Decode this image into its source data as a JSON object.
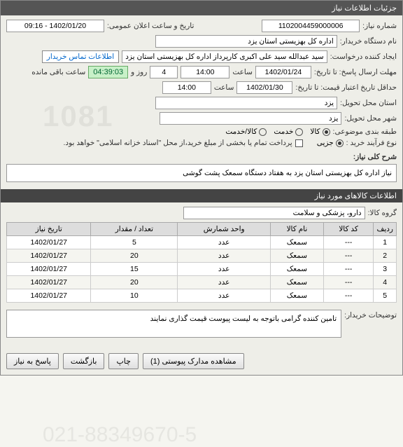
{
  "panel": {
    "title": "جزئیات اطلاعات نیاز"
  },
  "info": {
    "needNo_label": "شماره نیاز:",
    "needNo": "1102004459000006",
    "announceDate_label": "تاریخ و ساعت اعلان عمومی:",
    "announceDate": "1402/01/20 - 09:16",
    "buyerOrg_label": "نام دستگاه خریدار:",
    "buyerOrg": "اداره کل بهزیستی استان یزد",
    "requester_label": "ایجاد کننده درخواست:",
    "requester": "سید عبدالله سید علی اکبری کارپرداز اداره کل بهزیستی استان یزد",
    "contactInfo_btn": "اطلاعات تماس خریدار",
    "deadline_label": "مهلت ارسال پاسخ: تا تاریخ:",
    "deadline_date": "1402/01/24",
    "time_label": "ساعت",
    "deadline_time": "14:00",
    "days_label": "روز و",
    "days": "4",
    "remaining": "04:39:03",
    "remaining_label": "ساعت باقی مانده",
    "validity_label": "حداقل تاریخ اعتبار قیمت: تا تاریخ:",
    "validity_date": "1402/01/30",
    "validity_time": "14:00",
    "province_label": "استان محل تحویل:",
    "province": "یزد",
    "city_label": "شهر محل تحویل:",
    "city": "یزد",
    "category_label": "طبقه بندی موضوعی:",
    "cat_goods": "کالا",
    "cat_service": "خدمت",
    "cat_both": "کالا/خدمت",
    "purchase_label": "نوع فرآیند خرید :",
    "purchase_partial": "جزیی",
    "purchase_note": "پرداخت تمام یا بخشی از مبلغ خرید،از محل \"اسناد خزانه اسلامی\" خواهد بود.",
    "summary_label": "شرح کلی نیاز:",
    "summary": "نیاز اداره کل بهزیستی استان یزد به هفتاد دستگاه سمعک پشت گوشی"
  },
  "goods": {
    "title": "اطلاعات کالاهای مورد نیاز",
    "group_label": "گروه کالا:",
    "group": "دارو، پزشکی و سلامت",
    "cols": {
      "row": "ردیف",
      "code": "کد کالا",
      "name": "نام کالا",
      "unit": "واحد شمارش",
      "qty": "تعداد / مقدار",
      "date": "تاریخ نیاز"
    },
    "rows": [
      {
        "n": "1",
        "code": "---",
        "name": "سمعک",
        "unit": "عدد",
        "qty": "5",
        "date": "1402/01/27"
      },
      {
        "n": "2",
        "code": "---",
        "name": "سمعک",
        "unit": "عدد",
        "qty": "20",
        "date": "1402/01/27"
      },
      {
        "n": "3",
        "code": "---",
        "name": "سمعک",
        "unit": "عدد",
        "qty": "15",
        "date": "1402/01/27"
      },
      {
        "n": "4",
        "code": "---",
        "name": "سمعک",
        "unit": "عدد",
        "qty": "20",
        "date": "1402/01/27"
      },
      {
        "n": "5",
        "code": "---",
        "name": "سمعک",
        "unit": "عدد",
        "qty": "10",
        "date": "1402/01/27"
      }
    ],
    "buyerNote_label": "توضیحات خریدار:",
    "buyerNote": "تامین کننده گرامی باتوجه به لیست پیوست قیمت گذاری نمایند"
  },
  "footer": {
    "attachments": "مشاهده مدارک پیوستی (1)",
    "print": "چاپ",
    "back": "بازگشت",
    "reply": "پاسخ به نیاز"
  },
  "watermark": {
    "line1": "1081",
    "line2": "021-88349670-5"
  }
}
